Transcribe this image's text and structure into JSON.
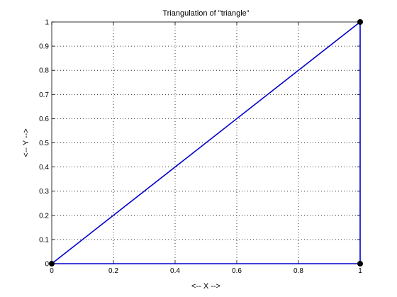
{
  "chart_data": {
    "type": "line",
    "title": "Triangulation of \"triangle\"",
    "xlabel": "<-- X -->",
    "ylabel": "<-- Y -->",
    "xlim": [
      0,
      1
    ],
    "ylim": [
      0,
      1
    ],
    "grid": true,
    "x_ticks": [
      0,
      0.2,
      0.4,
      0.6,
      0.8,
      1
    ],
    "x_tick_labels": [
      "0",
      "0.2",
      "0.4",
      "0.6",
      "0.8",
      "1"
    ],
    "y_ticks": [
      0,
      0.1,
      0.2,
      0.3,
      0.4,
      0.5,
      0.6,
      0.7,
      0.8,
      0.9,
      1
    ],
    "y_tick_labels": [
      "0",
      "0.1",
      "0.2",
      "0.3",
      "0.4",
      "0.5",
      "0.6",
      "0.7",
      "0.8",
      "0.9",
      "1"
    ],
    "vertices": [
      {
        "x": 0,
        "y": 0
      },
      {
        "x": 1,
        "y": 0
      },
      {
        "x": 1,
        "y": 1
      }
    ],
    "edges": [
      [
        0,
        1
      ],
      [
        1,
        2
      ],
      [
        2,
        0
      ]
    ],
    "edge_color": "#0000cc",
    "vertex_color": "#000000"
  }
}
